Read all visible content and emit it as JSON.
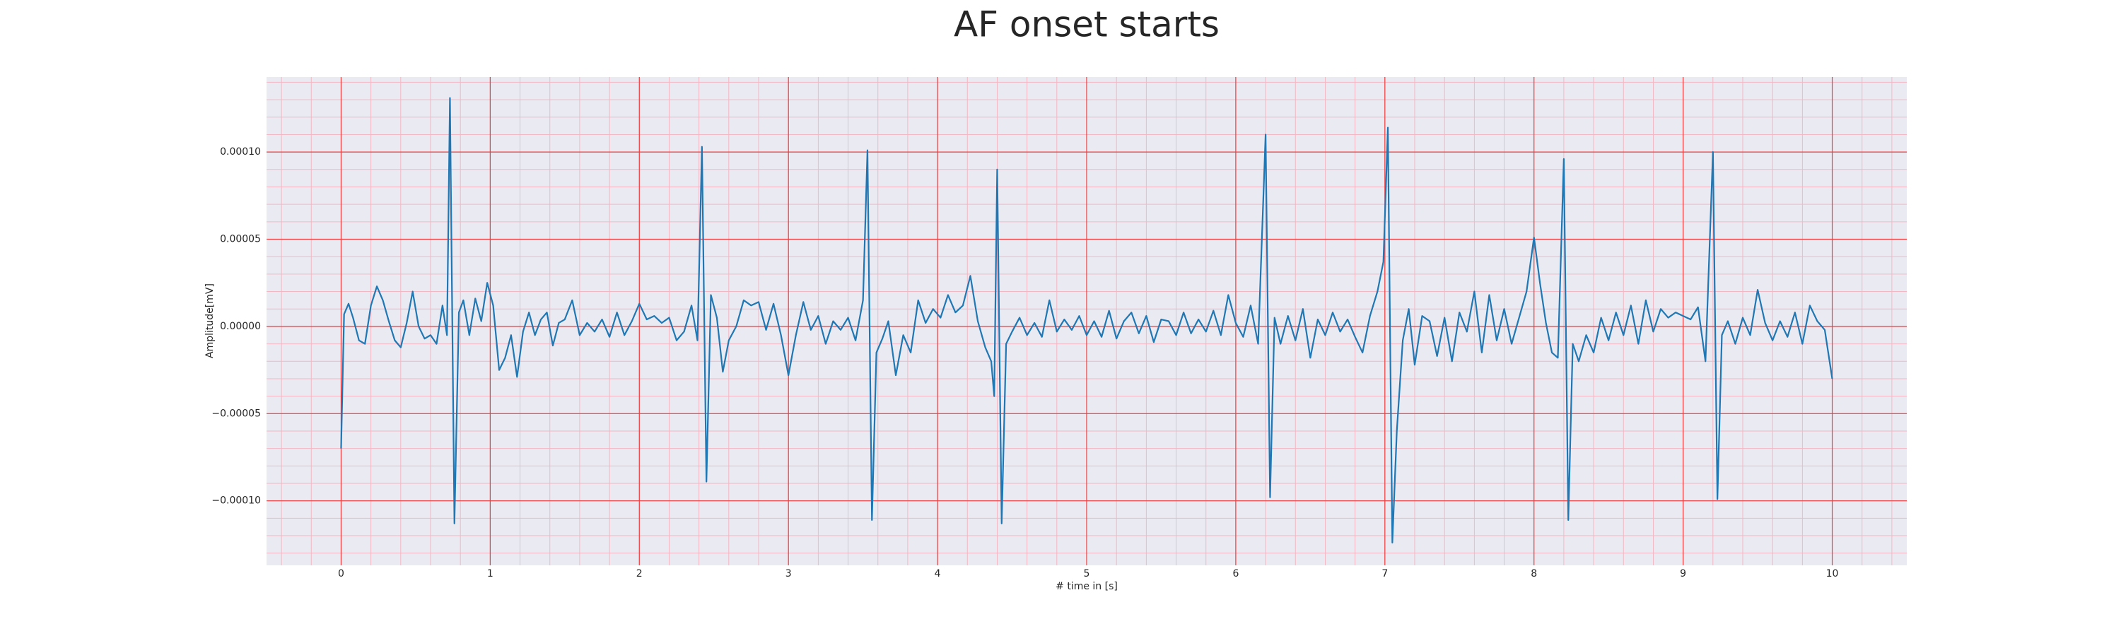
{
  "chart_data": {
    "type": "line",
    "title": "AF onset starts",
    "x_label": "# time in [s]",
    "y_label": "Amplitude[mV]",
    "color": "#1f77b4",
    "grid": true,
    "xlim": [
      -0.5,
      10.5
    ],
    "ylim": [
      -0.000137,
      0.000143
    ],
    "xticks": [
      0,
      1,
      2,
      3,
      4,
      5,
      6,
      7,
      8,
      9,
      10
    ],
    "yticks": [
      {
        "value": -0.0001,
        "label": "−0.00010"
      },
      {
        "value": -5e-05,
        "label": "−0.00005"
      },
      {
        "value": 0,
        "label": "0.00000"
      },
      {
        "value": 5e-05,
        "label": "0.00005"
      },
      {
        "value": 0.0001,
        "label": "0.00010"
      }
    ],
    "x": [
      0,
      0.02,
      0.05,
      0.08,
      0.12,
      0.16,
      0.2,
      0.24,
      0.28,
      0.32,
      0.36,
      0.4,
      0.44,
      0.48,
      0.52,
      0.56,
      0.6,
      0.64,
      0.68,
      0.71,
      0.73,
      0.76,
      0.79,
      0.82,
      0.86,
      0.9,
      0.94,
      0.98,
      1.02,
      1.06,
      1.1,
      1.14,
      1.18,
      1.22,
      1.26,
      1.3,
      1.34,
      1.38,
      1.42,
      1.46,
      1.5,
      1.55,
      1.6,
      1.65,
      1.7,
      1.75,
      1.8,
      1.85,
      1.9,
      1.95,
      2.0,
      2.05,
      2.1,
      2.15,
      2.2,
      2.25,
      2.3,
      2.35,
      2.39,
      2.42,
      2.45,
      2.48,
      2.52,
      2.56,
      2.6,
      2.65,
      2.7,
      2.75,
      2.8,
      2.85,
      2.9,
      2.95,
      3.0,
      3.05,
      3.1,
      3.15,
      3.2,
      3.25,
      3.3,
      3.35,
      3.4,
      3.45,
      3.5,
      3.53,
      3.56,
      3.59,
      3.63,
      3.67,
      3.72,
      3.77,
      3.82,
      3.87,
      3.92,
      3.97,
      4.02,
      4.07,
      4.12,
      4.17,
      4.22,
      4.27,
      4.32,
      4.36,
      4.38,
      4.4,
      4.43,
      4.46,
      4.5,
      4.55,
      4.6,
      4.65,
      4.7,
      4.75,
      4.8,
      4.85,
      4.9,
      4.95,
      5.0,
      5.05,
      5.1,
      5.15,
      5.2,
      5.25,
      5.3,
      5.35,
      5.4,
      5.45,
      5.5,
      5.55,
      5.6,
      5.65,
      5.7,
      5.75,
      5.8,
      5.85,
      5.9,
      5.95,
      6.0,
      6.05,
      6.1,
      6.15,
      6.2,
      6.23,
      6.26,
      6.3,
      6.35,
      6.4,
      6.45,
      6.5,
      6.55,
      6.6,
      6.65,
      6.7,
      6.75,
      6.8,
      6.85,
      6.9,
      6.95,
      6.99,
      7.02,
      7.05,
      7.08,
      7.12,
      7.16,
      7.2,
      7.25,
      7.3,
      7.35,
      7.4,
      7.45,
      7.5,
      7.55,
      7.6,
      7.65,
      7.7,
      7.75,
      7.8,
      7.85,
      7.9,
      7.95,
      8.0,
      8.04,
      8.08,
      8.12,
      8.16,
      8.2,
      8.23,
      8.26,
      8.3,
      8.35,
      8.4,
      8.45,
      8.5,
      8.55,
      8.6,
      8.65,
      8.7,
      8.75,
      8.8,
      8.85,
      8.9,
      8.95,
      9.0,
      9.05,
      9.1,
      9.15,
      9.2,
      9.23,
      9.26,
      9.3,
      9.35,
      9.4,
      9.45,
      9.5,
      9.55,
      9.6,
      9.65,
      9.7,
      9.75,
      9.8,
      9.85,
      9.9,
      9.95,
      10.0
    ],
    "values": [
      -7e-05,
      7e-06,
      1.3e-05,
      5e-06,
      -8e-06,
      -1e-05,
      1.2e-05,
      2.3e-05,
      1.5e-05,
      3e-06,
      -8e-06,
      -1.2e-05,
      2e-06,
      2e-05,
      0,
      -7e-06,
      -5e-06,
      -1e-05,
      1.2e-05,
      -5e-06,
      0.000131,
      -0.000113,
      8e-06,
      1.5e-05,
      -5e-06,
      1.6e-05,
      3e-06,
      2.5e-05,
      1.2e-05,
      -2.5e-05,
      -1.8e-05,
      -5e-06,
      -2.9e-05,
      -3e-06,
      8e-06,
      -5e-06,
      4e-06,
      8e-06,
      -1.1e-05,
      2e-06,
      4e-06,
      1.5e-05,
      -5e-06,
      2e-06,
      -3e-06,
      4e-06,
      -6e-06,
      8e-06,
      -5e-06,
      3e-06,
      1.3e-05,
      4e-06,
      6e-06,
      2e-06,
      5e-06,
      -8e-06,
      -3e-06,
      1.2e-05,
      -8e-06,
      0.000103,
      -8.9e-05,
      1.8e-05,
      5e-06,
      -2.6e-05,
      -8e-06,
      0,
      1.5e-05,
      1.2e-05,
      1.4e-05,
      -2e-06,
      1.3e-05,
      -5e-06,
      -2.8e-05,
      -5e-06,
      1.4e-05,
      -2e-06,
      6e-06,
      -1e-05,
      3e-06,
      -2e-06,
      5e-06,
      -8e-06,
      1.5e-05,
      0.000101,
      -0.000111,
      -1.5e-05,
      -7e-06,
      3e-06,
      -2.8e-05,
      -5e-06,
      -1.5e-05,
      1.5e-05,
      2e-06,
      1e-05,
      5e-06,
      1.8e-05,
      8e-06,
      1.2e-05,
      2.9e-05,
      3e-06,
      -1.2e-05,
      -2e-05,
      -4e-05,
      9e-05,
      -0.000113,
      -1e-05,
      -3e-06,
      5e-06,
      -5e-06,
      2e-06,
      -6e-06,
      1.5e-05,
      -3e-06,
      4e-06,
      -2e-06,
      6e-06,
      -5e-06,
      3e-06,
      -6e-06,
      9e-06,
      -7e-06,
      3e-06,
      8e-06,
      -4e-06,
      6e-06,
      -9e-06,
      4e-06,
      3e-06,
      -5e-06,
      8e-06,
      -4e-06,
      4e-06,
      -3e-06,
      9e-06,
      -5e-06,
      1.8e-05,
      2e-06,
      -6e-06,
      1.2e-05,
      -1e-05,
      0.00011,
      -9.8e-05,
      5e-06,
      -1e-05,
      6e-06,
      -8e-06,
      1e-05,
      -1.8e-05,
      4e-06,
      -5e-06,
      8e-06,
      -3e-06,
      4e-06,
      -6e-06,
      -1.5e-05,
      6e-06,
      2e-05,
      3.7e-05,
      0.000114,
      -0.000124,
      -6e-05,
      -8e-06,
      1e-05,
      -2.2e-05,
      6e-06,
      3e-06,
      -1.7e-05,
      5e-06,
      -2e-05,
      8e-06,
      -3e-06,
      2e-05,
      -1.5e-05,
      1.8e-05,
      -8e-06,
      1e-05,
      -1e-05,
      5e-06,
      2e-05,
      5.1e-05,
      2.5e-05,
      2e-06,
      -1.5e-05,
      -1.8e-05,
      9.6e-05,
      -0.000111,
      -1e-05,
      -2e-05,
      -5e-06,
      -1.5e-05,
      5e-06,
      -8e-06,
      8e-06,
      -5e-06,
      1.2e-05,
      -1e-05,
      1.5e-05,
      -3e-06,
      1e-05,
      5e-06,
      8e-06,
      6e-06,
      4e-06,
      1.1e-05,
      -2e-05,
      0.0001,
      -9.9e-05,
      -5e-06,
      3e-06,
      -1e-05,
      5e-06,
      -5e-06,
      2.1e-05,
      2e-06,
      -8e-06,
      3e-06,
      -6e-06,
      8e-06,
      -1e-05,
      1.2e-05,
      3e-06,
      -2e-06,
      -3e-05
    ]
  }
}
